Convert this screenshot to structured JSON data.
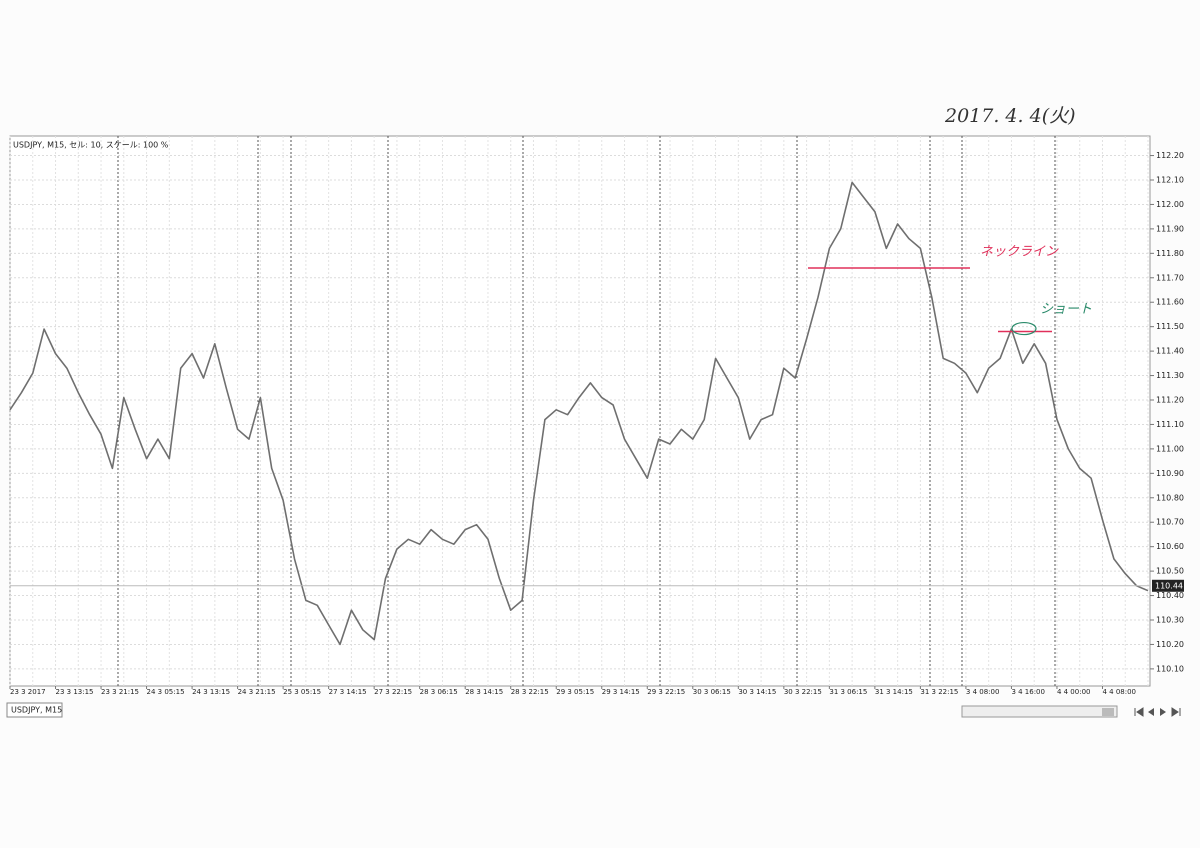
{
  "chart_data": {
    "type": "line",
    "header": "USDJPY, M15, セル: 10, スケール: 100 %",
    "tab": "USDJPY, M15",
    "date_note": "2017. 4. 4(火)",
    "neckline": {
      "label": "ネックライン",
      "value": 111.74
    },
    "short_line": {
      "label": "ショート",
      "value": 111.48
    },
    "current_price": 110.44,
    "color": "#6f6f6f",
    "grid": true,
    "ylim": [
      110.03,
      112.28
    ],
    "yticks": [
      {
        "value": 110.1,
        "label": "110.10"
      },
      {
        "value": 110.2,
        "label": "110.20"
      },
      {
        "value": 110.3,
        "label": "110.30"
      },
      {
        "value": 110.4,
        "label": "110.40"
      },
      {
        "value": 110.5,
        "label": "110.50"
      },
      {
        "value": 110.6,
        "label": "110.60"
      },
      {
        "value": 110.7,
        "label": "110.70"
      },
      {
        "value": 110.8,
        "label": "110.80"
      },
      {
        "value": 110.9,
        "label": "110.90"
      },
      {
        "value": 111.0,
        "label": "111.00"
      },
      {
        "value": 111.1,
        "label": "111.10"
      },
      {
        "value": 111.2,
        "label": "111.20"
      },
      {
        "value": 111.3,
        "label": "111.30"
      },
      {
        "value": 111.4,
        "label": "111.40"
      },
      {
        "value": 111.5,
        "label": "111.50"
      },
      {
        "value": 111.6,
        "label": "111.60"
      },
      {
        "value": 111.7,
        "label": "111.70"
      },
      {
        "value": 111.8,
        "label": "111.80"
      },
      {
        "value": 111.9,
        "label": "111.90"
      },
      {
        "value": 112.0,
        "label": "112.00"
      },
      {
        "value": 112.1,
        "label": "112.10"
      },
      {
        "value": 112.2,
        "label": "112.20"
      }
    ],
    "categories": [
      "23 3 2017",
      null,
      null,
      null,
      "23 3 13:15",
      null,
      null,
      null,
      "23 3 21:15",
      null,
      null,
      null,
      "24 3 05:15",
      null,
      null,
      null,
      "24 3 13:15",
      null,
      null,
      null,
      "24 3 21:15",
      null,
      null,
      null,
      "25 3 05:15",
      null,
      null,
      null,
      "27 3 14:15",
      null,
      null,
      null,
      "27 3 22:15",
      null,
      null,
      null,
      "28 3 06:15",
      null,
      null,
      null,
      "28 3 14:15",
      null,
      null,
      null,
      "28 3 22:15",
      null,
      null,
      null,
      "29 3 05:15",
      null,
      null,
      null,
      "29 3 14:15",
      null,
      null,
      null,
      "29 3 22:15",
      null,
      null,
      null,
      "30 3 06:15",
      null,
      null,
      null,
      "30 3 14:15",
      null,
      null,
      null,
      "30 3 22:15",
      null,
      null,
      null,
      "31 3 06:15",
      null,
      null,
      null,
      "31 3 14:15",
      null,
      null,
      null,
      "31 3 22:15",
      null,
      null,
      null,
      "3 4 08:00",
      null,
      null,
      null,
      "3 4 16:00",
      null,
      null,
      null,
      "4 4 00:00",
      null,
      null,
      null,
      "4 4 08:00",
      null,
      null,
      null,
      null
    ],
    "values": [
      111.16,
      111.23,
      111.31,
      111.49,
      111.39,
      111.33,
      111.23,
      111.14,
      111.06,
      110.92,
      111.21,
      111.08,
      110.96,
      111.04,
      110.96,
      111.33,
      111.39,
      111.29,
      111.43,
      111.25,
      111.08,
      111.04,
      111.21,
      110.92,
      110.79,
      110.55,
      110.38,
      110.36,
      110.28,
      110.2,
      110.34,
      110.26,
      110.22,
      110.47,
      110.59,
      110.63,
      110.61,
      110.67,
      110.63,
      110.61,
      110.67,
      110.69,
      110.63,
      110.47,
      110.34,
      110.38,
      110.79,
      111.12,
      111.16,
      111.14,
      111.21,
      111.27,
      111.21,
      111.18,
      111.04,
      110.96,
      110.88,
      111.04,
      111.02,
      111.08,
      111.04,
      111.12,
      111.37,
      111.29,
      111.21,
      111.04,
      111.12,
      111.14,
      111.33,
      111.29,
      111.45,
      111.62,
      111.82,
      111.9,
      112.09,
      112.03,
      111.97,
      111.82,
      111.92,
      111.86,
      111.82,
      111.62,
      111.37,
      111.35,
      111.31,
      111.23,
      111.33,
      111.37,
      111.49,
      111.35,
      111.43,
      111.35,
      111.12,
      111.0,
      110.92,
      110.88,
      110.71,
      110.55,
      110.49,
      110.44,
      110.42
    ]
  }
}
